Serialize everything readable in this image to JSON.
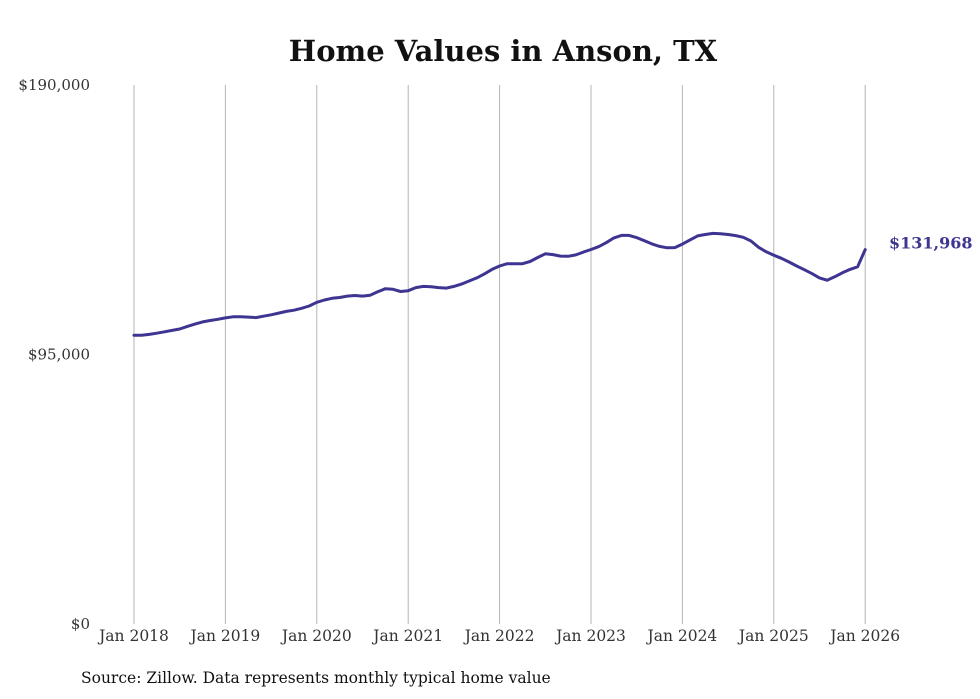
{
  "chart_data": {
    "type": "line",
    "title": "Home Values in Anson, TX",
    "ylim": [
      0,
      190000
    ],
    "y_ticks": [
      {
        "value": 190000,
        "label": "$190,000"
      },
      {
        "value": 95000,
        "label": "$95,000"
      },
      {
        "value": 0,
        "label": "$0"
      }
    ],
    "x_ticks": [
      "Jan 2018",
      "Jan 2019",
      "Jan 2020",
      "Jan 2021",
      "Jan 2022",
      "Jan 2023",
      "Jan 2024",
      "Jan 2025",
      "Jan 2026"
    ],
    "x_start": "Jan 2018",
    "grid": "vertical",
    "series": [
      {
        "name": "Typical home value",
        "color": "#3d3591",
        "values": [
          101800,
          101800,
          102100,
          102500,
          103000,
          103500,
          104000,
          104900,
          105700,
          106500,
          107000,
          107400,
          107900,
          108300,
          108300,
          108200,
          108000,
          108500,
          109000,
          109600,
          110200,
          110600,
          111300,
          112100,
          113400,
          114200,
          114800,
          115100,
          115600,
          115800,
          115600,
          115900,
          117100,
          118200,
          118000,
          117200,
          117500,
          118600,
          119000,
          118900,
          118600,
          118400,
          119000,
          119800,
          120900,
          122000,
          123400,
          125000,
          126200,
          127000,
          127000,
          127000,
          127800,
          129200,
          130500,
          130200,
          129700,
          129600,
          130100,
          131100,
          132000,
          133000,
          134400,
          136100,
          137000,
          137000,
          136200,
          135100,
          134000,
          133100,
          132600,
          132700,
          133900,
          135400,
          136800,
          137300,
          137700,
          137600,
          137300,
          136900,
          136300,
          135000,
          132800,
          131200,
          130000,
          128900,
          127600,
          126200,
          124900,
          123500,
          122000,
          121200,
          122400,
          123800,
          125000,
          125900,
          131968
        ]
      }
    ],
    "end_label": "$131,968"
  },
  "source_note": "Source: Zillow. Data represents monthly typical home value"
}
